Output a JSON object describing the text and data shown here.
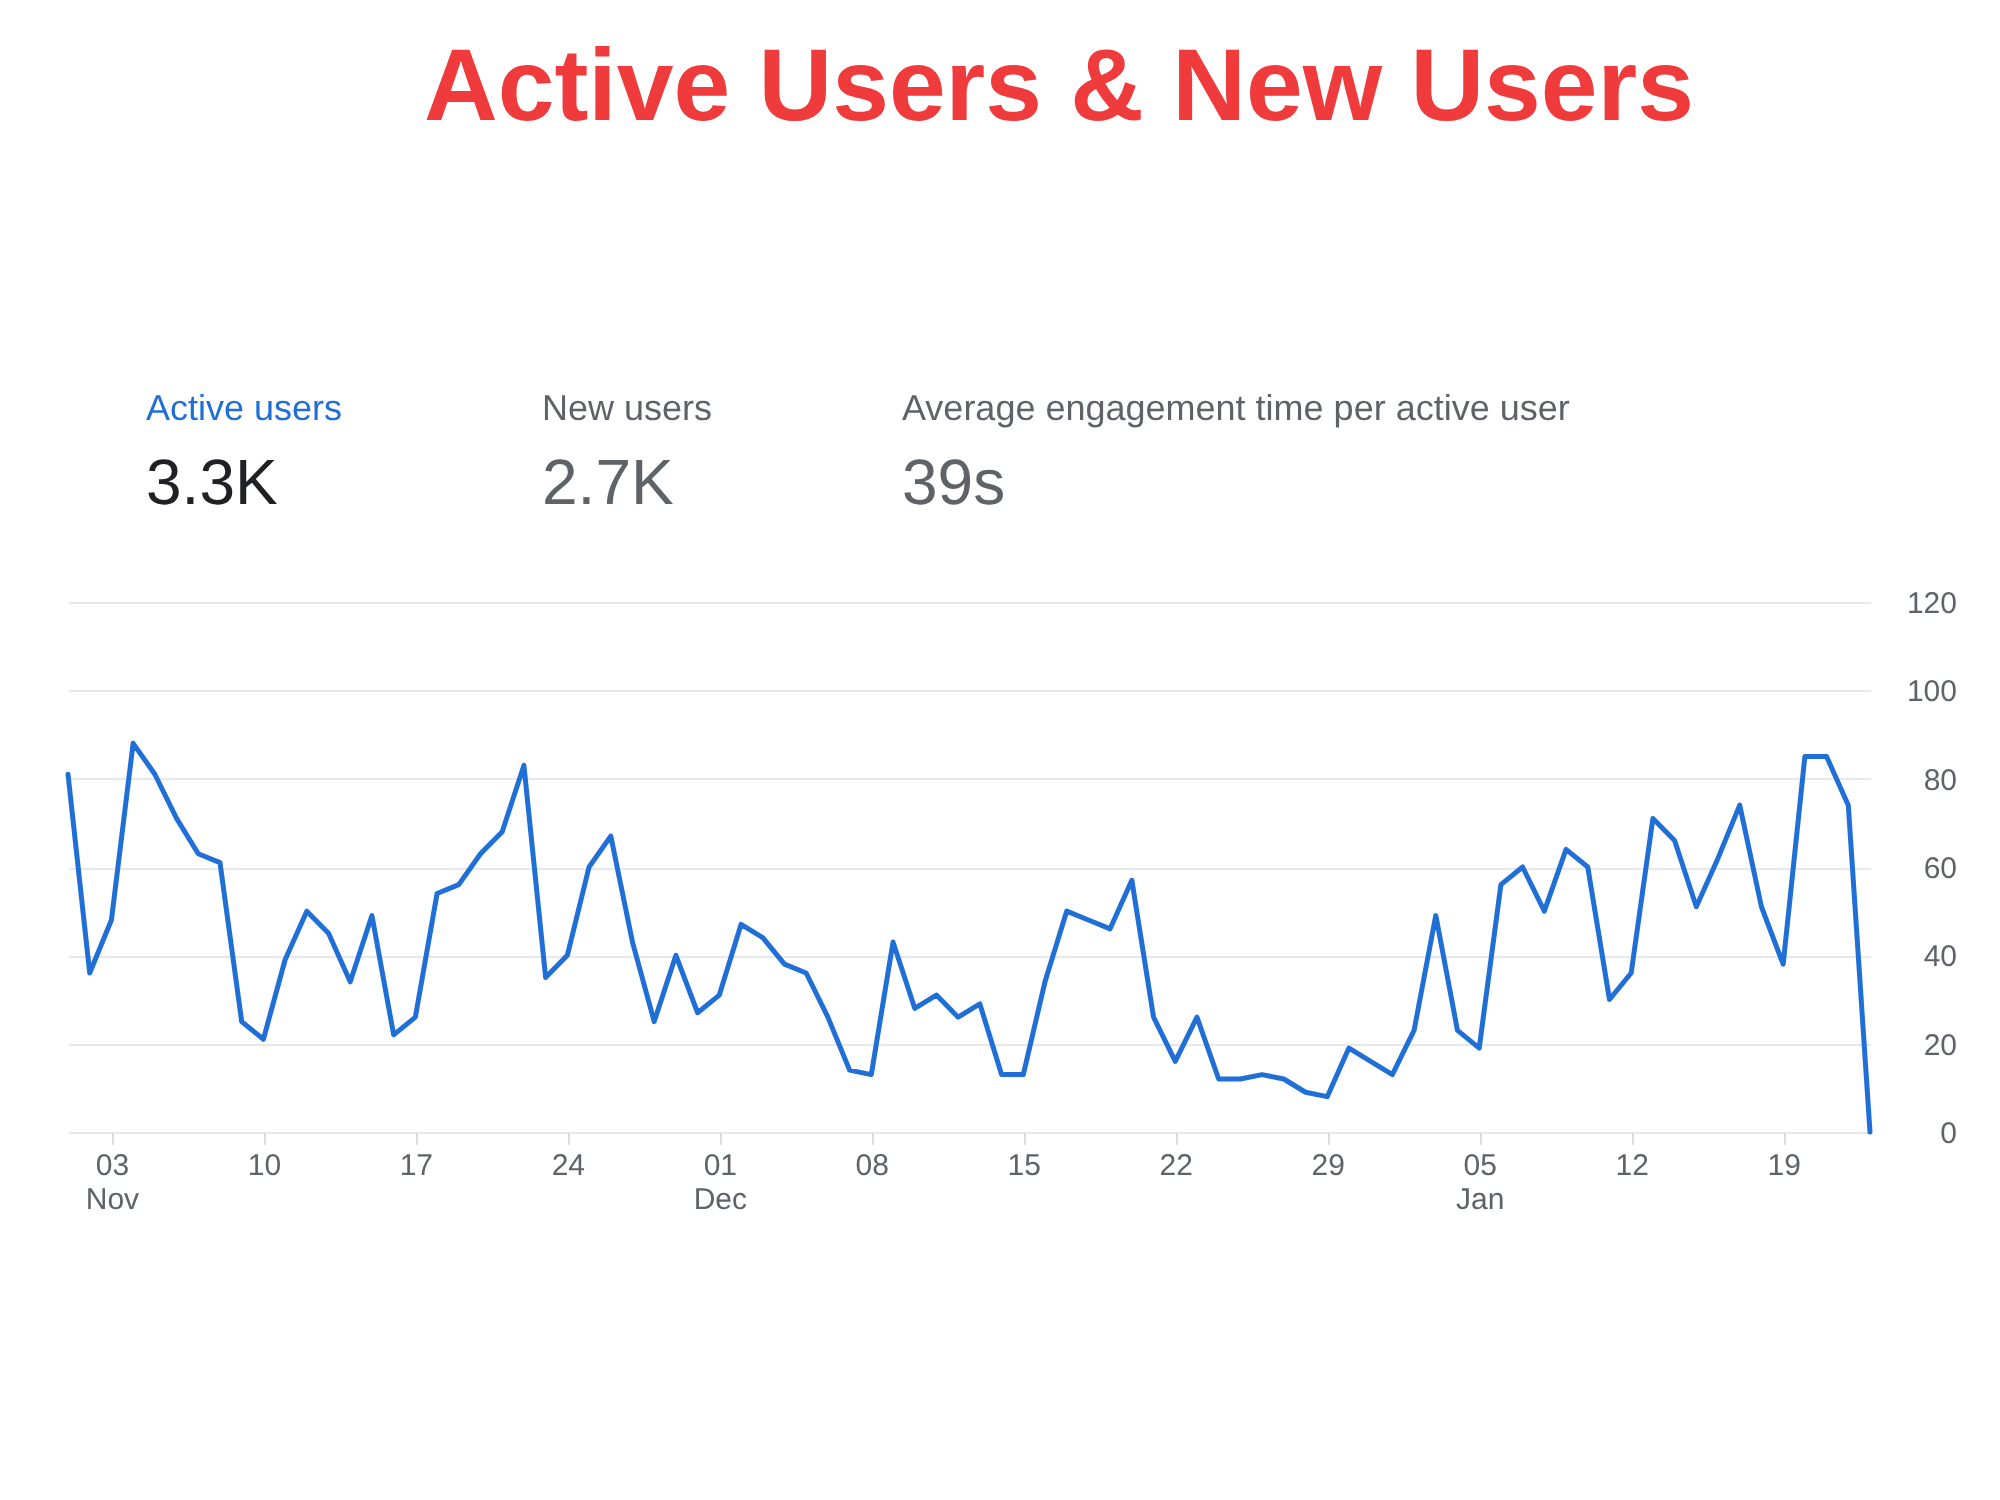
{
  "chart_data": {
    "type": "line",
    "title": "Active Users & New Users",
    "annotations": [
      "3.3K",
      "New users",
      "2.7K",
      "Average engagement time per active user",
      "39s"
    ],
    "categories": [
      null,
      null,
      "03\nNov",
      null,
      null,
      null,
      null,
      null,
      null,
      "10",
      null,
      null,
      null,
      null,
      null,
      null,
      "17",
      null,
      null,
      null,
      null,
      null,
      null,
      "24",
      null,
      null,
      null,
      null,
      null,
      null,
      "01\nDec",
      null,
      null,
      null,
      null,
      null,
      null,
      "08",
      null,
      null,
      null,
      null,
      null,
      null,
      "15",
      null,
      null,
      null,
      null,
      null,
      null,
      "22",
      null,
      null,
      null,
      null,
      null,
      null,
      "29",
      null,
      null,
      null,
      null,
      null,
      null,
      "05\nJan",
      null,
      null,
      null,
      null,
      null,
      null,
      "12",
      null,
      null,
      null,
      null,
      null,
      null,
      "19",
      null,
      null,
      null,
      null
    ],
    "series": [
      {
        "name": "Active users",
        "color": "#1f6fd6",
        "values": [
          81,
          36,
          48,
          88,
          81,
          71,
          63,
          61,
          25,
          21,
          39,
          50,
          45,
          34,
          49,
          22,
          26,
          54,
          56,
          63,
          68,
          83,
          35,
          40,
          60,
          67,
          43,
          25,
          40,
          27,
          31,
          47,
          44,
          38,
          36,
          26,
          14,
          13,
          43,
          28,
          31,
          26,
          29,
          13,
          13,
          34,
          50,
          48,
          46,
          57,
          26,
          16,
          26,
          12,
          12,
          13,
          12,
          9,
          8,
          19,
          16,
          13,
          23,
          49,
          23,
          19,
          56,
          60,
          50,
          64,
          60,
          30,
          36,
          71,
          66,
          51,
          62,
          74,
          51,
          38,
          85,
          85,
          74,
          0
        ]
      }
    ],
    "ylim": [
      0,
      120
    ],
    "yticks": [
      0,
      20,
      40,
      60,
      80,
      100,
      120
    ],
    "grid": "y"
  }
}
